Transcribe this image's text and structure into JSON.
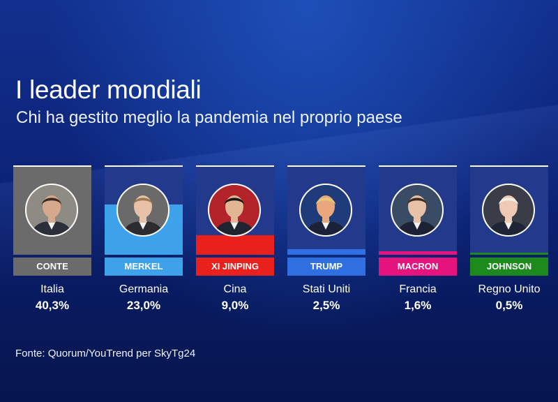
{
  "title": "I leader mondiali",
  "subtitle": "Chi ha gestito meglio la pandemia nel proprio paese",
  "source": "Fonte: Quorum/YouTrend per SkyTg24",
  "chart_data": {
    "type": "bar",
    "unit": "%",
    "scale_max": 40.3,
    "items": [
      {
        "leader": "CONTE",
        "country": "Italia",
        "value": 40.3,
        "value_label": "40,3%",
        "color": "#6b6b6b",
        "icon": "portrait-conte-icon"
      },
      {
        "leader": "MERKEL",
        "country": "Germania",
        "value": 23.0,
        "value_label": "23,0%",
        "color": "#3ea2ea",
        "icon": "portrait-merkel-icon"
      },
      {
        "leader": "XI JINPING",
        "country": "Cina",
        "value": 9.0,
        "value_label": "9,0%",
        "color": "#e8211d",
        "icon": "portrait-xi-jinping-icon"
      },
      {
        "leader": "TRUMP",
        "country": "Stati Uniti",
        "value": 2.5,
        "value_label": "2,5%",
        "color": "#2f6fe2",
        "icon": "portrait-trump-icon"
      },
      {
        "leader": "MACRON",
        "country": "Francia",
        "value": 1.6,
        "value_label": "1,6%",
        "color": "#e5137d",
        "icon": "portrait-macron-icon"
      },
      {
        "leader": "JOHNSON",
        "country": "Regno Unito",
        "value": 0.5,
        "value_label": "0,5%",
        "color": "#1d8a1d",
        "icon": "portrait-johnson-icon"
      }
    ]
  },
  "portraits": [
    {
      "skin": "#d6a98c",
      "hair": "#3a2b22",
      "suit": "#2a2f3a",
      "bg": "#8e8a84"
    },
    {
      "skin": "#e8c2a8",
      "hair": "#9a7a4e",
      "suit": "#2b2b30",
      "bg": "#6a6a6a"
    },
    {
      "skin": "#e2b594",
      "hair": "#151515",
      "suit": "#1f2430",
      "bg": "#b3242a"
    },
    {
      "skin": "#e8a87c",
      "hair": "#e6c878",
      "suit": "#1b2238",
      "bg": "#1f3c7a"
    },
    {
      "skin": "#e7c2a6",
      "hair": "#3b2a20",
      "suit": "#1c2233",
      "bg": "#3a4b66"
    },
    {
      "skin": "#f0c9b4",
      "hair": "#f3f1e6",
      "suit": "#1e2535",
      "bg": "#3a3d48"
    }
  ]
}
